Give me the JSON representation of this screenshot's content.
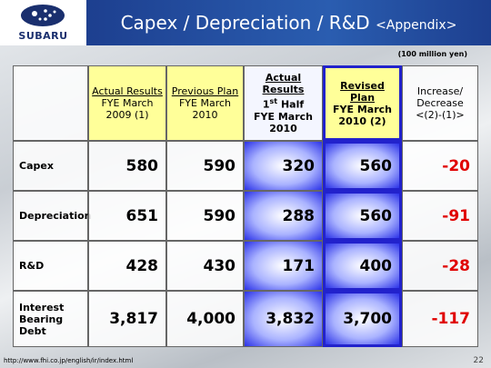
{
  "header": {
    "logo_text": "SUBARU",
    "title": "Capex / Depreciation / R&D",
    "title_suffix": "<Appendix>"
  },
  "unit": "(100 million yen)",
  "table": {
    "columns": [
      {
        "title": "Actual Results",
        "sub": "FYE March 2009 (1)"
      },
      {
        "title": "Previous Plan",
        "sub": "FYE March 2010"
      },
      {
        "title": "Actual Results",
        "ordinal": "1",
        "ordinal_suffix": "st",
        "period": "Half",
        "sub": "FYE March 2010"
      },
      {
        "title": "Revised Plan",
        "sub": "FYE March 2010 (2)"
      },
      {
        "title": "Increase/",
        "sub": "Decrease <(2)-(1)>"
      }
    ],
    "rows": [
      {
        "label": "Capex",
        "values": [
          "580",
          "590",
          "320",
          "560",
          "-20"
        ]
      },
      {
        "label": "Depreciation",
        "values": [
          "651",
          "590",
          "288",
          "560",
          "-91"
        ]
      },
      {
        "label": "R&D",
        "values": [
          "428",
          "430",
          "171",
          "400",
          "-28"
        ]
      },
      {
        "label": "Interest Bearing Debt",
        "values": [
          "3,817",
          "4,000",
          "3,832",
          "3,700",
          "-117"
        ]
      }
    ]
  },
  "footer": {
    "url": "http://www.fhi.co.jp/english/ir/index.html",
    "page": "22"
  }
}
